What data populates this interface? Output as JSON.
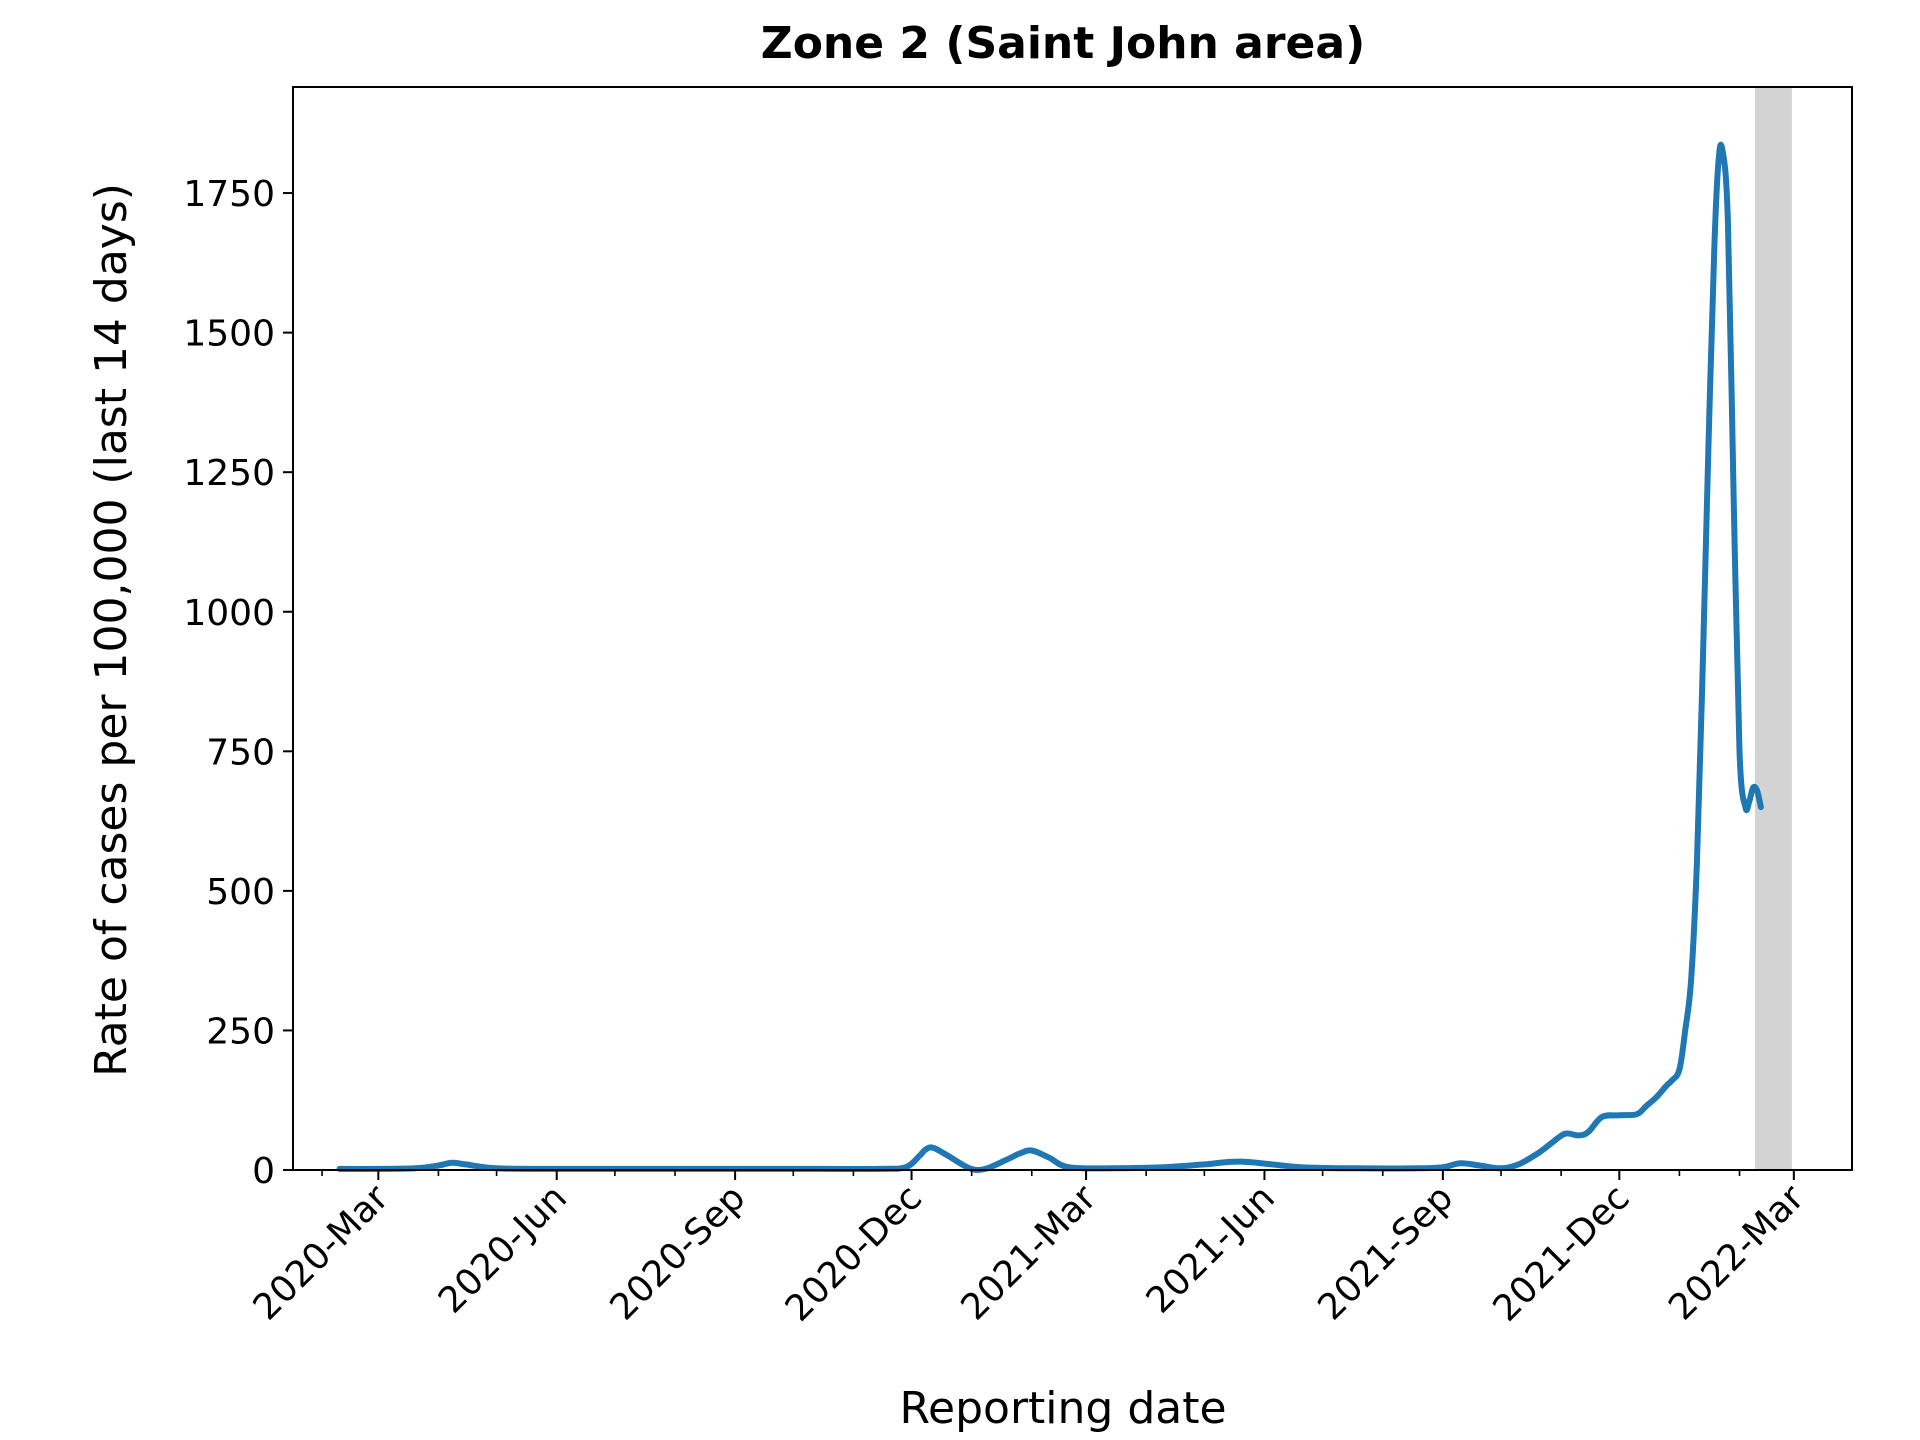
{
  "chart_data": {
    "type": "line",
    "title": "Zone 2 (Saint John area)",
    "xlabel": "Reporting date",
    "ylabel": "Rate of cases per 100,000 (last 14 days)",
    "xlim": [
      "2020-01-17",
      "2022-03-31"
    ],
    "ylim": [
      0,
      1940
    ],
    "yticks": [
      0,
      250,
      500,
      750,
      1000,
      1250,
      1500,
      1750
    ],
    "xticks": [
      {
        "date": "2020-03-01",
        "label": "2020-Mar"
      },
      {
        "date": "2020-06-01",
        "label": "2020-Jun"
      },
      {
        "date": "2020-09-01",
        "label": "2020-Sep"
      },
      {
        "date": "2020-12-01",
        "label": "2020-Dec"
      },
      {
        "date": "2021-03-01",
        "label": "2021-Mar"
      },
      {
        "date": "2021-06-01",
        "label": "2021-Jun"
      },
      {
        "date": "2021-09-01",
        "label": "2021-Sep"
      },
      {
        "date": "2021-12-01",
        "label": "2021-Dec"
      },
      {
        "date": "2022-03-01",
        "label": "2022-Mar"
      }
    ],
    "minor_xticks": [
      "2020-02-01",
      "2020-04-01",
      "2020-05-01",
      "2020-07-01",
      "2020-08-01",
      "2020-10-01",
      "2020-11-01",
      "2021-01-01",
      "2021-02-01",
      "2021-04-01",
      "2021-05-01",
      "2021-07-01",
      "2021-08-01",
      "2021-10-01",
      "2021-11-01",
      "2022-01-01",
      "2022-02-01"
    ],
    "shaded_region": {
      "from": "2022-02-09",
      "to": "2022-02-28",
      "color": "#d3d3d3"
    },
    "line_color": "#1f77b4",
    "grid": false,
    "series": [
      {
        "x": [
          "2020-02-10",
          "2020-03-01",
          "2020-03-20",
          "2020-04-01",
          "2020-04-08",
          "2020-04-15",
          "2020-05-01",
          "2020-06-01",
          "2020-09-01",
          "2020-10-15",
          "2020-11-15",
          "2020-11-28",
          "2020-12-05",
          "2020-12-08",
          "2020-12-12",
          "2020-12-20",
          "2020-12-31",
          "2021-01-08",
          "2021-01-20",
          "2021-01-26",
          "2021-02-01",
          "2021-02-10",
          "2021-02-20",
          "2021-03-15",
          "2021-04-10",
          "2021-05-01",
          "2021-05-20",
          "2021-06-20",
          "2021-07-20",
          "2021-08-20",
          "2021-09-01",
          "2021-09-10",
          "2021-09-20",
          "2021-10-01",
          "2021-10-10",
          "2021-10-20",
          "2021-10-27",
          "2021-11-03",
          "2021-11-10",
          "2021-11-15",
          "2021-11-22",
          "2021-12-01",
          "2021-12-10",
          "2021-12-15",
          "2021-12-20",
          "2021-12-25",
          "2021-12-28",
          "2022-01-01",
          "2022-01-04",
          "2022-01-07",
          "2022-01-10",
          "2022-01-13",
          "2022-01-16",
          "2022-01-19",
          "2022-01-21",
          "2022-01-23",
          "2022-01-26",
          "2022-01-29",
          "2022-02-01",
          "2022-02-04",
          "2022-02-06",
          "2022-02-08",
          "2022-02-10",
          "2022-02-12",
          "2022-02-15",
          "2022-02-18"
        ],
        "y": [
          2,
          2,
          3,
          8,
          13,
          10,
          3,
          2,
          2,
          2,
          2,
          5,
          25,
          36,
          40,
          25,
          3,
          2,
          20,
          30,
          35,
          22,
          5,
          3,
          5,
          10,
          15,
          5,
          3,
          3,
          5,
          12,
          8,
          3,
          10,
          30,
          48,
          65,
          62,
          68,
          95,
          98,
          100,
          115,
          130,
          150,
          160,
          180,
          250,
          340,
          550,
          900,
          1300,
          1650,
          1800,
          1830,
          1700,
          1200,
          750,
          650,
          660,
          685,
          680,
          650,
          null,
          null
        ]
      }
    ]
  }
}
